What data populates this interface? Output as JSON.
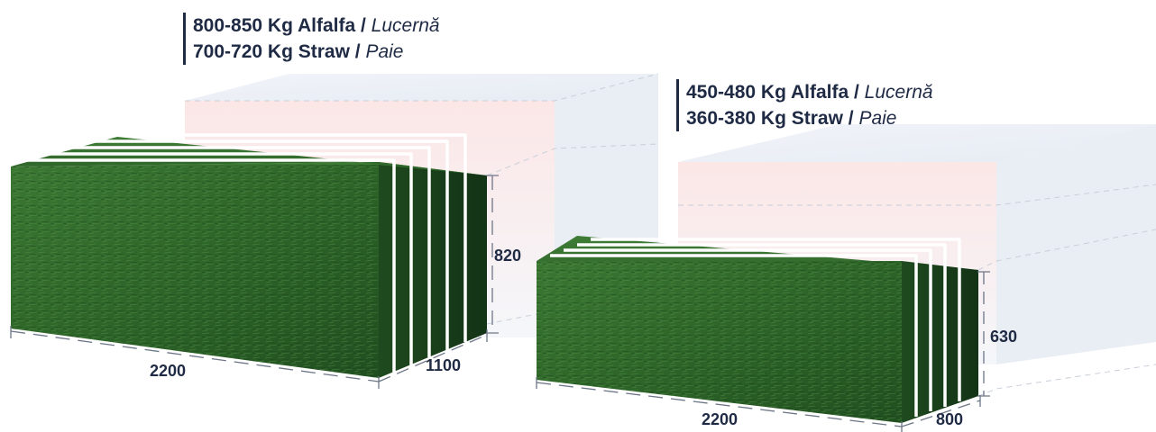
{
  "large_bale": {
    "weights": [
      {
        "amount": "800-850 Kg Alfalfa",
        "sep": "/",
        "local": "Lucernă"
      },
      {
        "amount": "700-720 Kg Straw",
        "sep": "/",
        "local": "Paie"
      }
    ],
    "length": "2200",
    "width": "1100",
    "height": "820"
  },
  "small_bale": {
    "weights": [
      {
        "amount": "450-480 Kg Alfalfa",
        "sep": "/",
        "local": "Lucernă"
      },
      {
        "amount": "360-380 Kg Straw",
        "sep": "/",
        "local": "Paie"
      }
    ],
    "length": "2200",
    "width": "800",
    "height": "630"
  },
  "colors": {
    "text": "#1f2a44",
    "hay_green": "#2f6a2a",
    "hay_dark": "#14381a",
    "ghost_box": "#e4eaf3",
    "ghost_tint": "#f9dede"
  }
}
